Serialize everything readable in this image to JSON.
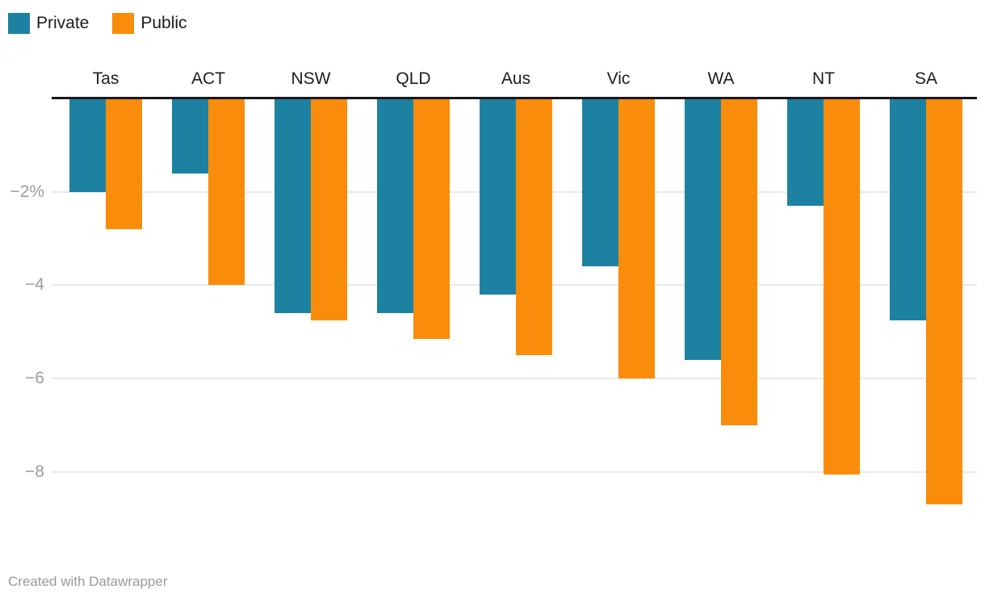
{
  "legend": {
    "items": [
      {
        "label": "Private",
        "color": "#1d81a2"
      },
      {
        "label": "Public",
        "color": "#f98c0a"
      }
    ]
  },
  "attribution": "Created with Datawrapper",
  "colors": {
    "private_teal": "#1d81a2",
    "public_orange": "#f98c0a",
    "gridline": "#e9e9e9",
    "baseline": "#18181a",
    "tick_text": "#9c9c9c",
    "label_text": "#1d1d1d",
    "attribution_text": "#9a9a9a",
    "background": "#ffffff"
  },
  "chart_data": {
    "type": "bar",
    "orientation": "vertical-grouped",
    "title": "",
    "xlabel": "",
    "ylabel": "",
    "unit": "%",
    "categories": [
      "Tas",
      "ACT",
      "NSW",
      "QLD",
      "Aus",
      "Vic",
      "WA",
      "NT",
      "SA"
    ],
    "series": [
      {
        "name": "Private",
        "color": "#1d81a2",
        "values": [
          -2.0,
          -1.6,
          -4.6,
          -4.6,
          -4.2,
          -3.6,
          -5.6,
          -2.3,
          -4.75
        ]
      },
      {
        "name": "Public",
        "color": "#f98c0a",
        "values": [
          -2.8,
          -4.0,
          -4.75,
          -5.15,
          -5.5,
          -6.0,
          -7.0,
          -8.05,
          -8.7
        ]
      }
    ],
    "y_ticks": [
      {
        "value": -2,
        "label": "−2%"
      },
      {
        "value": -4,
        "label": "−4"
      },
      {
        "value": -6,
        "label": "−6"
      },
      {
        "value": -8,
        "label": "−8"
      }
    ],
    "ylim": [
      -9.3,
      0
    ],
    "baseline": 0,
    "grid": true,
    "legend_position": "top-left"
  }
}
